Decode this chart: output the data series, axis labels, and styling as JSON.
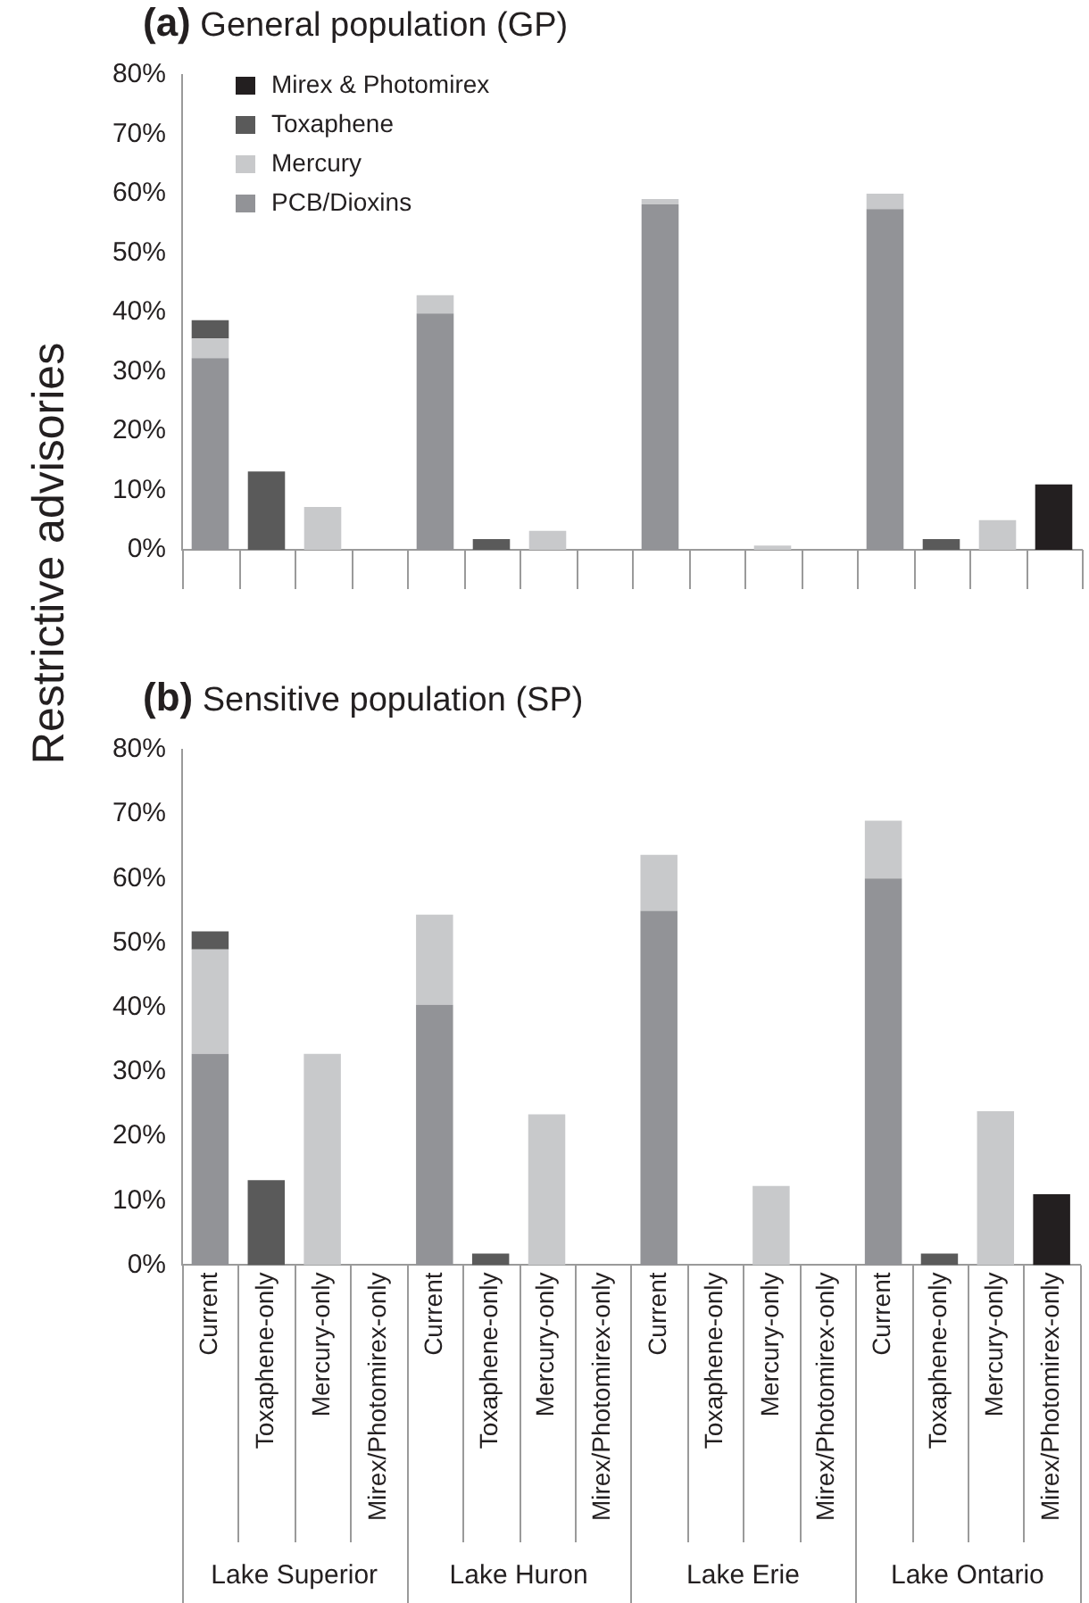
{
  "chart_data": [
    {
      "type": "bar",
      "title": "(a) General population (GP)",
      "ylabel": "Restrictive advisories",
      "stacked": true,
      "legend": "top left",
      "tick_labels": "y",
      "grid": false,
      "categories": [
        null,
        null,
        null,
        null,
        null,
        null,
        null,
        null,
        null,
        null,
        null,
        null,
        null,
        null,
        null,
        null
      ],
      "ylim": [
        0,
        80
      ],
      "yticks": [
        {
          "value": 0,
          "label": "0%"
        },
        {
          "value": 10,
          "label": "10%"
        },
        {
          "value": 20,
          "label": "20%"
        },
        {
          "value": 30,
          "label": "30%"
        },
        {
          "value": 40,
          "label": "40%"
        },
        {
          "value": 50,
          "label": "50%"
        },
        {
          "value": 60,
          "label": "60%"
        },
        {
          "value": 70,
          "label": "70%"
        },
        {
          "value": 80,
          "label": "80%"
        }
      ],
      "series": [
        {
          "name": "PCB/Dioxins",
          "color": "#929397",
          "values": [
            32.3,
            null,
            null,
            null,
            39.8,
            null,
            null,
            null,
            58.2,
            null,
            null,
            null,
            57.4,
            null,
            null,
            null
          ]
        },
        {
          "name": "Mercury",
          "color": "#c8c9cb",
          "values": [
            3.3,
            null,
            7.2,
            null,
            3.1,
            null,
            3.2,
            null,
            0.9,
            null,
            0.7,
            null,
            2.6,
            null,
            5.0,
            null
          ]
        },
        {
          "name": "Toxaphene",
          "color": "#5a5a5a",
          "values": [
            3.1,
            13.2,
            null,
            null,
            null,
            1.8,
            null,
            null,
            null,
            null,
            null,
            null,
            null,
            1.8,
            null,
            null
          ]
        },
        {
          "name": "Mirex & Photomirex",
          "color": "#231f20",
          "values": [
            null,
            null,
            null,
            null,
            null,
            null,
            null,
            null,
            null,
            null,
            null,
            null,
            null,
            null,
            null,
            11.0
          ]
        }
      ]
    },
    {
      "type": "bar",
      "title": "(b) Sensitive population (SP)",
      "stacked": true,
      "grid": false,
      "categories": [
        "Current",
        "Toxaphene-only",
        "Mercury-only",
        "Mirex/Photomirex-only",
        "Current",
        "Toxaphene-only",
        "Mercury-only",
        "Mirex/Photomirex-only",
        "Current",
        "Toxaphene-only",
        "Mercury-only",
        "Mirex/Photomirex-only",
        "Current",
        "Toxaphene-only",
        "Mercury-only",
        "Mirex/Photomirex-only"
      ],
      "annotations": [
        "Lake Superior",
        "Lake Huron",
        "Lake Erie",
        "Lake Ontario"
      ],
      "ylim": [
        0,
        80
      ],
      "yticks": [
        {
          "value": 0,
          "label": "0%"
        },
        {
          "value": 10,
          "label": "10%"
        },
        {
          "value": 20,
          "label": "20%"
        },
        {
          "value": 30,
          "label": "30%"
        },
        {
          "value": 40,
          "label": "40%"
        },
        {
          "value": 50,
          "label": "50%"
        },
        {
          "value": 60,
          "label": "60%"
        },
        {
          "value": 70,
          "label": "70%"
        },
        {
          "value": 80,
          "label": "80%"
        }
      ],
      "series": [
        {
          "color": "#929397",
          "values": [
            32.8,
            null,
            null,
            null,
            40.4,
            null,
            null,
            null,
            55.0,
            null,
            null,
            null,
            60.0,
            null,
            null,
            null
          ]
        },
        {
          "color": "#c8c9cb",
          "values": [
            16.2,
            null,
            32.8,
            null,
            14.0,
            null,
            23.4,
            null,
            8.7,
            null,
            12.3,
            null,
            9.0,
            null,
            23.9,
            null
          ]
        },
        {
          "color": "#5a5a5a",
          "values": [
            2.8,
            13.2,
            null,
            null,
            null,
            1.8,
            null,
            null,
            null,
            null,
            null,
            null,
            null,
            1.8,
            null,
            null
          ]
        },
        {
          "color": "#231f20",
          "values": [
            null,
            null,
            null,
            null,
            null,
            null,
            null,
            null,
            null,
            null,
            null,
            null,
            null,
            null,
            null,
            11.0
          ]
        }
      ]
    }
  ]
}
